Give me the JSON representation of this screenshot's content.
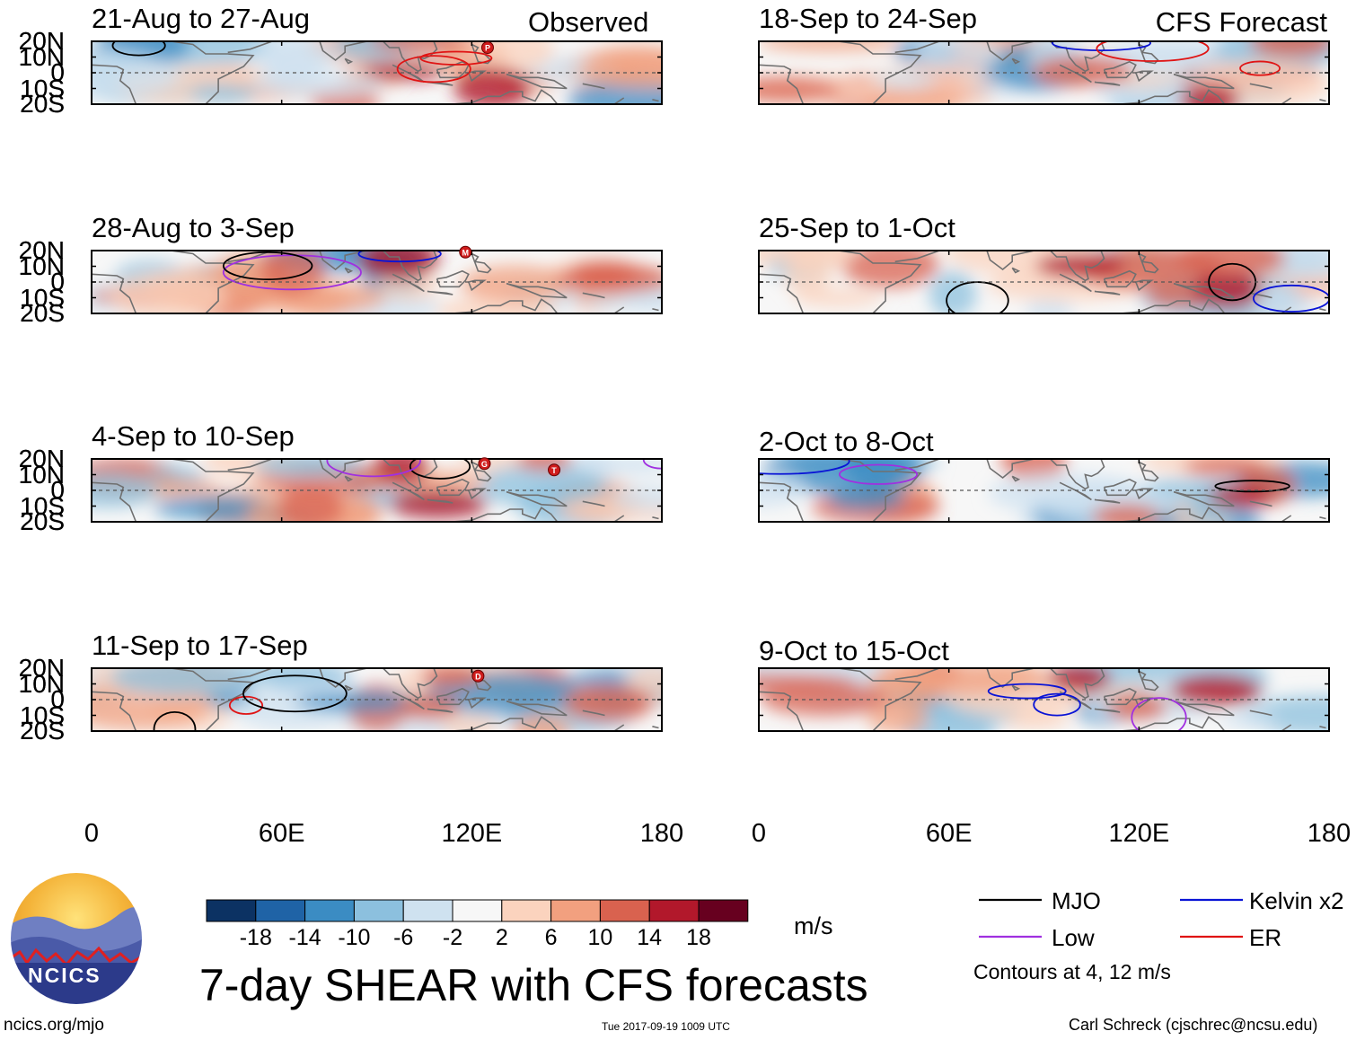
{
  "chart_data": {
    "type": "heatmap",
    "title": "7-day SHEAR with CFS forecasts",
    "units": "m/s",
    "x_axis": {
      "ticks": [
        "0",
        "60E",
        "120E",
        "180"
      ],
      "range": [
        0,
        180
      ]
    },
    "y_axis": {
      "ticks": [
        "20N",
        "10N",
        "0",
        "10S",
        "20S"
      ],
      "range": [
        -20,
        20
      ]
    },
    "observed_label": "Observed",
    "forecast_label": "CFS Forecast",
    "panels": [
      {
        "title": "21-Aug to 27-Aug",
        "column": "left",
        "row": 0,
        "storms": [
          {
            "letter": "P",
            "lon": 125,
            "lat": 16
          }
        ]
      },
      {
        "title": "28-Aug to 3-Sep",
        "column": "left",
        "row": 1,
        "storms": [
          {
            "letter": "M",
            "lon": 118,
            "lat": 19
          }
        ]
      },
      {
        "title": "4-Sep to 10-Sep",
        "column": "left",
        "row": 2,
        "storms": [
          {
            "letter": "G",
            "lon": 124,
            "lat": 17
          },
          {
            "letter": "T",
            "lon": 146,
            "lat": 13
          }
        ]
      },
      {
        "title": "11-Sep to 17-Sep",
        "column": "left",
        "row": 3,
        "storms": [
          {
            "letter": "D",
            "lon": 122,
            "lat": 15
          }
        ]
      },
      {
        "title": "18-Sep to 24-Sep",
        "column": "right",
        "row": 0,
        "storms": []
      },
      {
        "title": "25-Sep to 1-Oct",
        "column": "right",
        "row": 1,
        "storms": []
      },
      {
        "title": "2-Oct to 8-Oct",
        "column": "right",
        "row": 2,
        "storms": []
      },
      {
        "title": "9-Oct to 15-Oct",
        "column": "right",
        "row": 3,
        "storms": []
      }
    ],
    "colorbar": {
      "ticks": [
        "-18",
        "-14",
        "-10",
        "-6",
        "-2",
        "2",
        "6",
        "10",
        "14",
        "18"
      ],
      "colors": [
        "#0c3263",
        "#1f63a6",
        "#3b8cc3",
        "#8cc0de",
        "#cfe2f0",
        "#f7f7f7",
        "#fbd3be",
        "#f2a07f",
        "#d9624f",
        "#b2182b",
        "#67001f"
      ]
    },
    "legend": {
      "entries": [
        {
          "label": "MJO",
          "color": "#000000"
        },
        {
          "label": "Kelvin x2",
          "color": "#0a14d6"
        },
        {
          "label": "Low",
          "color": "#a030e0"
        },
        {
          "label": "ER",
          "color": "#e01414"
        }
      ],
      "note": "Contours at 4, 12 m/s"
    }
  },
  "footer": {
    "logo_text": "NCICS",
    "site": "ncics.org/mjo",
    "timestamp": "Tue 2017-09-19 1009 UTC",
    "credit": "Carl Schreck (cjschrec@ncsu.edu)"
  }
}
